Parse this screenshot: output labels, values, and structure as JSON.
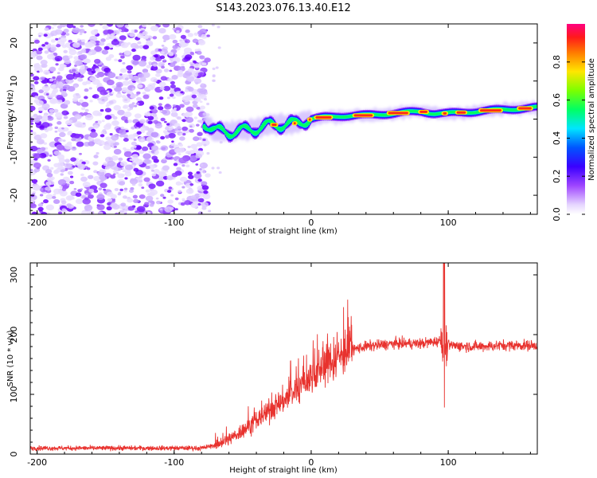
{
  "title": "S143.2023.076.13.40.E12",
  "colors": {
    "line": "#e8322e",
    "axis": "#000000",
    "background": "#ffffff"
  },
  "chart_data": [
    {
      "type": "heatmap",
      "description_ref": "spectrogram of frequency vs height",
      "xlabel": "Height of straight line (km)",
      "ylabel": "Frequency (Hz)",
      "xlim": [
        -205,
        165
      ],
      "ylim": [
        -25,
        25
      ],
      "xticks": [
        -200,
        -100,
        0,
        100
      ],
      "yticks": [
        -20,
        -10,
        0,
        10,
        20
      ],
      "noise_region_x": [
        -205,
        -75
      ],
      "signal_start_x": -78,
      "ridge": {
        "x": [
          -78,
          -70,
          -60,
          -50,
          -40,
          -30,
          -20,
          -10,
          0,
          10,
          20,
          40,
          60,
          80,
          90,
          100,
          120,
          140,
          165
        ],
        "freq": [
          -1,
          -3,
          -3.5,
          -3,
          -2.5,
          -1.5,
          -1.5,
          -1,
          0,
          0.5,
          0.8,
          1,
          1.5,
          2,
          1.5,
          1.5,
          2,
          2.5,
          3
        ]
      },
      "colorbar": {
        "label": "Normalized spectral amplitude",
        "ticks": [
          "0.0",
          "0.2",
          "0.4",
          "0.6",
          "0.8"
        ],
        "tick_values": [
          0,
          0.2,
          0.4,
          0.6,
          0.8
        ],
        "range": [
          0,
          1
        ]
      }
    },
    {
      "type": "line",
      "xlabel": "Height of straight line (km)",
      "ylabel": "SNR (10 * v/v)",
      "xlim": [
        -205,
        165
      ],
      "ylim": [
        0,
        320
      ],
      "xticks": [
        -200,
        -100,
        0,
        100
      ],
      "yticks": [
        0,
        100,
        200,
        300
      ],
      "trend": {
        "x": [
          -205,
          -80,
          -70,
          -60,
          -50,
          -40,
          -30,
          -20,
          -10,
          0,
          10,
          20,
          30,
          40,
          60,
          80,
          90,
          95,
          100,
          120,
          140,
          165
        ],
        "y": [
          10,
          10,
          15,
          25,
          40,
          55,
          75,
          90,
          110,
          130,
          150,
          165,
          175,
          180,
          185,
          185,
          188,
          190,
          182,
          180,
          182,
          182
        ]
      },
      "spike": {
        "x": 97,
        "peak": 320,
        "trough": 78
      }
    }
  ]
}
